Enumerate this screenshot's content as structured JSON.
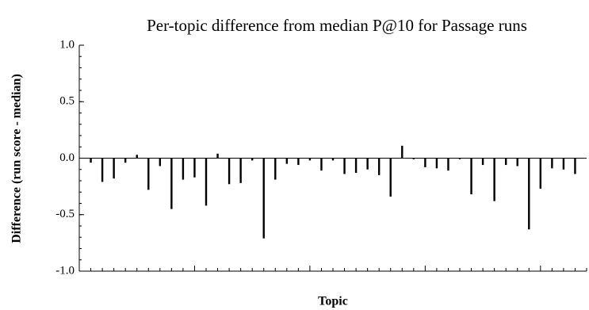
{
  "chart_data": {
    "type": "bar",
    "title": "Per-topic difference from median P@10 for Passage runs",
    "xlabel": "Topic",
    "ylabel": "Difference (run score - median)",
    "categories": [
      null,
      null,
      null,
      null,
      null,
      null,
      null,
      null,
      null,
      null,
      null,
      null,
      null,
      null,
      null,
      null,
      null,
      null,
      null,
      null,
      null,
      null,
      null,
      null,
      null,
      null,
      null,
      null,
      null,
      null,
      null,
      null,
      null,
      null,
      null,
      null,
      null,
      null,
      null,
      null,
      null,
      null,
      null
    ],
    "values": [
      -0.04,
      -0.21,
      -0.18,
      -0.04,
      0.03,
      -0.28,
      -0.07,
      -0.45,
      -0.19,
      -0.17,
      -0.42,
      0.04,
      -0.23,
      -0.22,
      -0.02,
      -0.71,
      -0.19,
      -0.05,
      -0.06,
      -0.02,
      -0.11,
      -0.02,
      -0.14,
      -0.13,
      -0.1,
      -0.15,
      -0.34,
      0.11,
      -0.01,
      -0.08,
      -0.09,
      -0.11,
      -0.01,
      -0.32,
      -0.06,
      -0.38,
      -0.06,
      -0.07,
      -0.63,
      -0.27,
      -0.09,
      -0.1,
      -0.14
    ],
    "color": "#000000",
    "ylim": [
      -1.0,
      1.0
    ],
    "yticks": [
      {
        "value": 1.0,
        "label": "1.0"
      },
      {
        "value": 0.5,
        "label": "0.5"
      },
      {
        "value": 0.0,
        "label": "0.0"
      },
      {
        "value": -0.5,
        "label": "-0.5"
      },
      {
        "value": -1.0,
        "label": "-1.0"
      }
    ],
    "grid": false
  }
}
